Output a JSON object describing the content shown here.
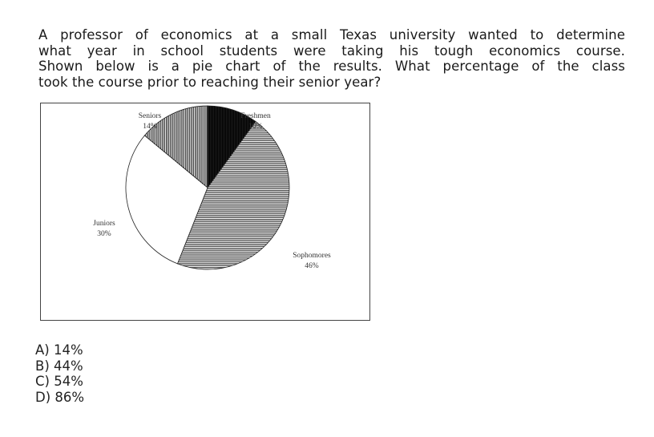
{
  "question": {
    "lines": [
      "A professor of economics at a small Texas university wanted to determine",
      "what year in school students were taking his tough economics course.",
      "Shown below is a pie chart of the results. What percentage of the class",
      "took the course prior to reaching their senior year?"
    ]
  },
  "chart_data": {
    "type": "pie",
    "title": "",
    "slices": [
      {
        "name": "Freshmen",
        "value": 10,
        "label": "10%",
        "color": "#000000",
        "pattern": "vertical-fine-dark"
      },
      {
        "name": "Sophomores",
        "value": 46,
        "label": "46%",
        "color": "#777777",
        "pattern": "horizontal-lines"
      },
      {
        "name": "Juniors",
        "value": 30,
        "label": "30%",
        "color": "#ffffff",
        "pattern": "none"
      },
      {
        "name": "Seniors",
        "value": 14,
        "label": "14%",
        "color": "#555555",
        "pattern": "vertical-lines"
      }
    ]
  },
  "answers": [
    {
      "letter": "A)",
      "text": "14%"
    },
    {
      "letter": "B)",
      "text": "44%"
    },
    {
      "letter": "C)",
      "text": "54%"
    },
    {
      "letter": "D)",
      "text": "86%"
    }
  ]
}
